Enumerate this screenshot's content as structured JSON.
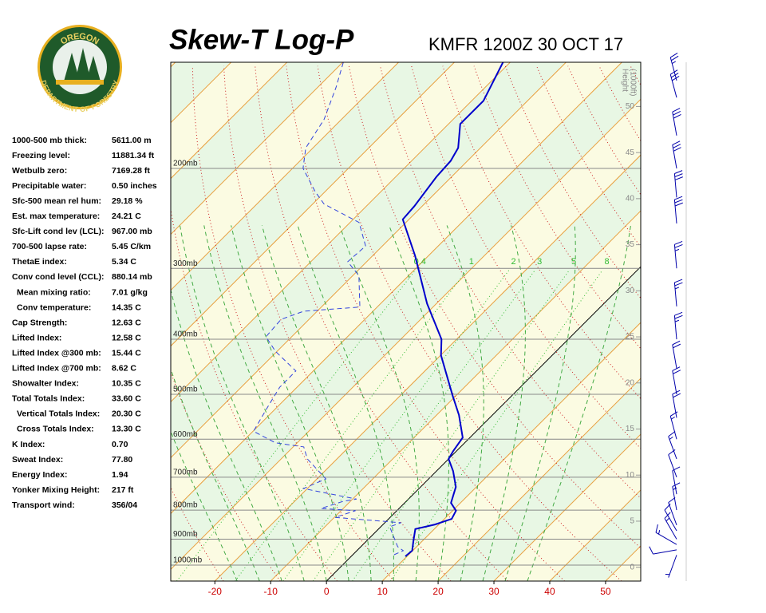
{
  "logo": {
    "top": "OREGON",
    "bottom": "DEPARTMENT OF FORESTRY"
  },
  "indices": [
    {
      "label": "1000-500 mb thick:",
      "value": "5611.00 m"
    },
    {
      "label": "Freezing level:",
      "value": "11881.34 ft"
    },
    {
      "label": "Wetbulb zero:",
      "value": "7169.28 ft"
    },
    {
      "label": "Precipitable water:",
      "value": "0.50 inches"
    },
    {
      "label": "Sfc-500 mean rel hum:",
      "value": "29.18 %"
    },
    {
      "label": "Est. max temperature:",
      "value": "24.21 C"
    },
    {
      "label": "Sfc-Lift cond lev (LCL):",
      "value": "967.00 mb"
    },
    {
      "label": "700-500 lapse rate:",
      "value": "5.45 C/km"
    },
    {
      "label": "ThetaE index:",
      "value": "5.34 C"
    },
    {
      "label": "Conv cond level (CCL):",
      "value": "880.14 mb"
    },
    {
      "label": "Mean mixing ratio:",
      "value": "7.01 g/kg"
    },
    {
      "label": "Conv temperature:",
      "value": "14.35 C"
    },
    {
      "label": "Cap Strength:",
      "value": "12.63 C"
    },
    {
      "label": "Lifted Index:",
      "value": "12.58 C"
    },
    {
      "label": "Lifted Index @300 mb:",
      "value": "15.44 C"
    },
    {
      "label": "Lifted Index @700 mb:",
      "value": "8.62 C"
    },
    {
      "label": "Showalter Index:",
      "value": "10.35 C"
    },
    {
      "label": "Total Totals Index:",
      "value": "33.60 C"
    },
    {
      "label": "Vertical Totals Index:",
      "value": "20.30 C"
    },
    {
      "label": "Cross Totals Index:",
      "value": "13.30 C"
    },
    {
      "label": "K Index:",
      "value": "0.70"
    },
    {
      "label": "Sweat Index:",
      "value": "77.80"
    },
    {
      "label": "Energy Index:",
      "value": "1.94"
    },
    {
      "label": "Yonker Mixing Height:",
      "value": "217 ft"
    },
    {
      "label": "Transport wind:",
      "value": "356/04"
    }
  ],
  "chart_data": {
    "type": "skewt",
    "title": "Skew-T Log-P",
    "subtitle": "KMFR 1200Z 30 OCT 17",
    "xlim": [
      -27.9,
      56.3
    ],
    "xticks": [
      -20,
      -10,
      0,
      10,
      20,
      30,
      40,
      50
    ],
    "ylim": [
      1067,
      130
    ],
    "log_y": true,
    "yticks": [
      {
        "value": 200,
        "label": "200mb"
      },
      {
        "value": 300,
        "label": "300mb"
      },
      {
        "value": 400,
        "label": "400mb"
      },
      {
        "value": 500,
        "label": "500mb"
      },
      {
        "value": 600,
        "label": "600mb"
      },
      {
        "value": 700,
        "label": "700mb"
      },
      {
        "value": 800,
        "label": "800mb"
      },
      {
        "value": 900,
        "label": "900mb"
      },
      {
        "value": 1000,
        "label": "1000mb"
      }
    ],
    "y2_label": [
      "Height",
      "(1000ft)"
    ],
    "y2lim": [
      -1.5,
      54.8
    ],
    "y2ticks": [
      0,
      5,
      10,
      15,
      20,
      25,
      30,
      35,
      40,
      45,
      50
    ],
    "series": [
      {
        "color": "#0000cc",
        "dashed": false,
        "pressure": [
          965,
          943,
          907,
          864,
          848,
          829,
          802,
          777,
          728,
          683,
          650,
          629,
          596,
          544,
          502,
          427,
          400,
          346,
          285,
          246,
          233,
          207,
          194,
          184,
          167,
          152,
          130
        ],
        "values": [
          9.7,
          9.9,
          8.4,
          6.6,
          9.3,
          11.3,
          10.6,
          8.3,
          6.3,
          3.0,
          0.0,
          -0.6,
          -1.3,
          -6.0,
          -10.7,
          -19.9,
          -22.7,
          -31.7,
          -42.4,
          -51.1,
          -51.4,
          -52.7,
          -53.0,
          -54.0,
          -57.9,
          -57.9,
          -61.3
        ]
      },
      {
        "color": "#3344dd",
        "dashed": true,
        "pressure": [
          959,
          943,
          928,
          856,
          842,
          824,
          802,
          795,
          772,
          765,
          733,
          705,
          650,
          619,
          609,
          581,
          527,
          486,
          455,
          420,
          396,
          369,
          357,
          351,
          309,
          292,
          274,
          249,
          231,
          220,
          200,
          184,
          164,
          144,
          130
        ],
        "values": [
          7.4,
          8.3,
          6.6,
          1.6,
          2.9,
          -9.9,
          -7.4,
          -14.0,
          -11.3,
          -9.3,
          -20.7,
          -18.4,
          -25.3,
          -28.1,
          -33.9,
          -39.9,
          -41.7,
          -43.1,
          -43.1,
          -50.3,
          -54.6,
          -55.0,
          -52.4,
          -43.1,
          -48.9,
          -53.4,
          -53.0,
          -58.4,
          -68.0,
          -71.7,
          -78.1,
          -81.3,
          -83.1,
          -86.7,
          -89.9
        ]
      }
    ],
    "mixing_ratio": {
      "color": "#33bb33",
      "values": [
        0.4,
        1,
        2,
        3,
        5,
        8
      ]
    },
    "wind": {
      "color": "#0000aa",
      "pressure": [
        960,
        940,
        920,
        900,
        870,
        850,
        800,
        750,
        700,
        650,
        600,
        550,
        500,
        450,
        400,
        350,
        300,
        250,
        225,
        200,
        175,
        150,
        140
      ],
      "direction": [
        200,
        260,
        300,
        330,
        330,
        340,
        350,
        350,
        340,
        340,
        345,
        350,
        350,
        350,
        355,
        355,
        355,
        355,
        355,
        350,
        350,
        345,
        345
      ],
      "speed": [
        5,
        10,
        15,
        15,
        10,
        10,
        15,
        10,
        10,
        15,
        15,
        20,
        20,
        20,
        25,
        25,
        25,
        30,
        30,
        30,
        30,
        30,
        25
      ]
    }
  }
}
